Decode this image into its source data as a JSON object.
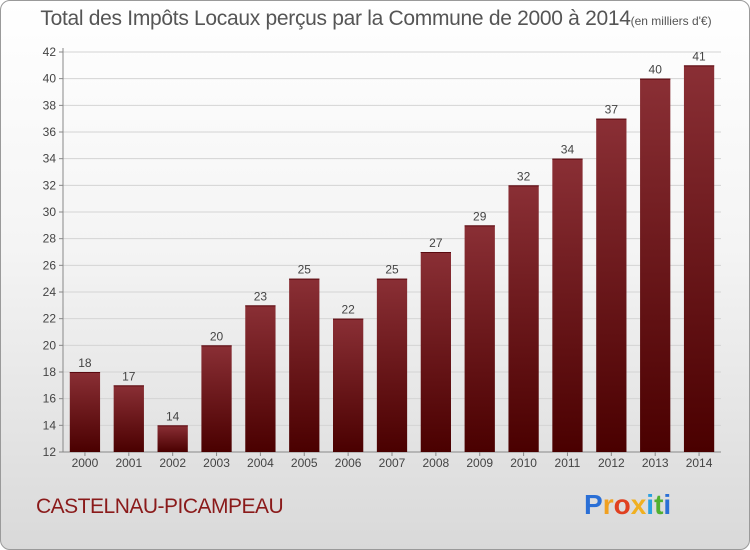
{
  "header": {
    "title": "Total des Impôts Locaux perçus par la Commune de 2000 à 2014",
    "unit": "(en milliers d'€)"
  },
  "commune": "CASTELNAU-PICAMPEAU",
  "logo": {
    "letters": [
      "P",
      "r",
      "o",
      "x",
      "i",
      "t",
      "i"
    ],
    "colors": [
      "#2a6fd6",
      "#f0a020",
      "#e04020",
      "#f0b020",
      "#2aa0e0",
      "#50b030",
      "#2a6fd6"
    ]
  },
  "chart_data": {
    "type": "bar",
    "title": "Total des Impôts Locaux perçus par la Commune de 2000 à 2014",
    "xlabel": "",
    "ylabel": "",
    "ylim": [
      12,
      42
    ],
    "yticks": [
      12,
      14,
      16,
      18,
      20,
      22,
      24,
      26,
      28,
      30,
      32,
      34,
      36,
      38,
      40,
      42
    ],
    "grid": true,
    "categories": [
      "2000",
      "2001",
      "2002",
      "2003",
      "2004",
      "2005",
      "2006",
      "2007",
      "2008",
      "2009",
      "2010",
      "2011",
      "2012",
      "2013",
      "2014"
    ],
    "values": [
      18,
      17,
      14,
      20,
      23,
      25,
      22,
      25,
      27,
      29,
      32,
      34,
      37,
      40,
      41
    ],
    "bar_color_top": "#8a2f35",
    "bar_color_bottom": "#4a0000"
  }
}
